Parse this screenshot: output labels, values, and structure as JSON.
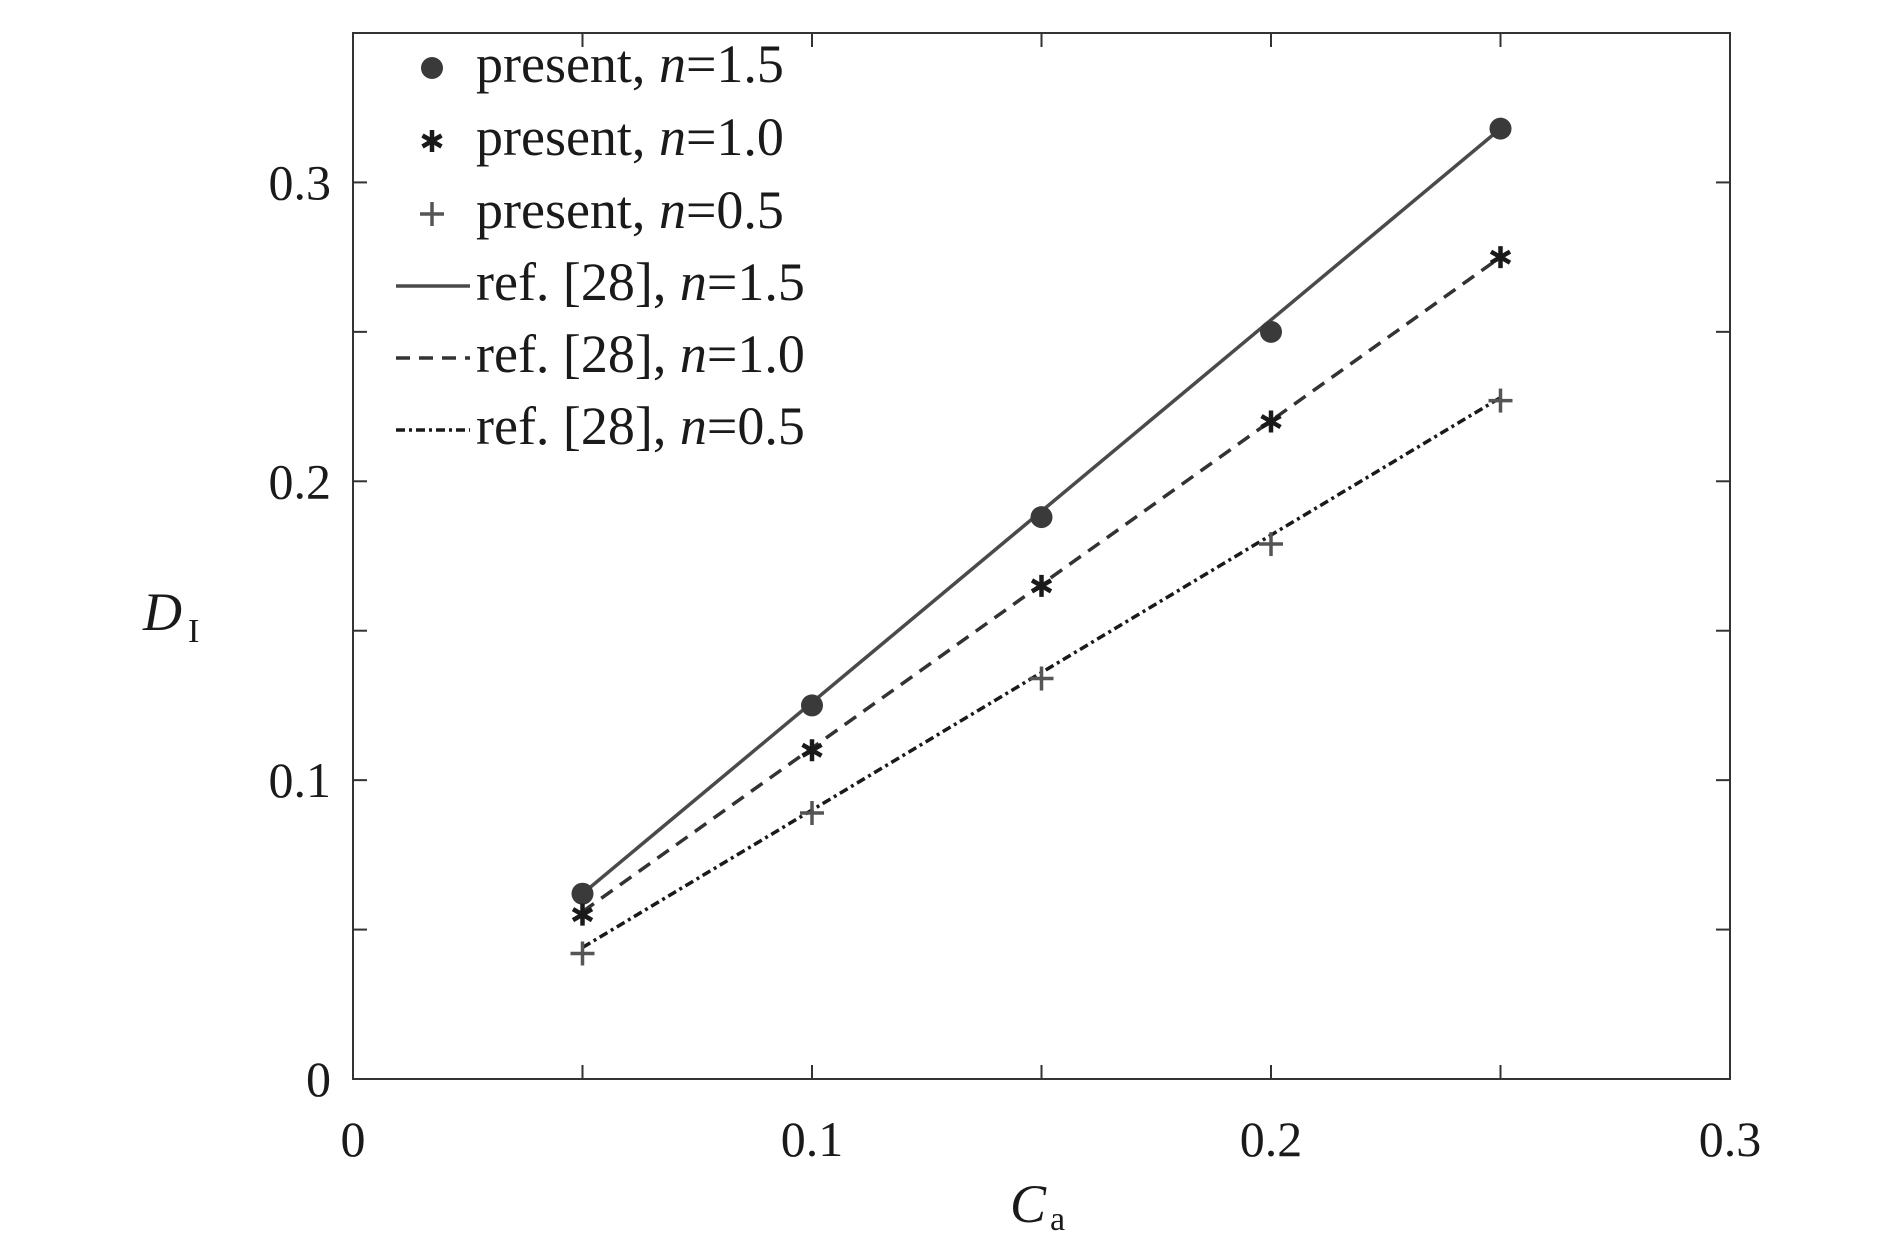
{
  "chart_data": {
    "type": "scatter",
    "xlabel": {
      "symbol": "C",
      "subscript": "a"
    },
    "ylabel": {
      "symbol": "D",
      "subscript": "I"
    },
    "xlim": [
      0,
      0.3
    ],
    "ylim": [
      0,
      0.35
    ],
    "xticks": [
      0,
      0.05,
      0.1,
      0.15,
      0.2,
      0.25,
      0.3
    ],
    "xtick_labels": [
      "0",
      "",
      "0.1",
      "",
      "0.2",
      "",
      "0.3"
    ],
    "yticks": [
      0,
      0.05,
      0.1,
      0.15,
      0.2,
      0.25,
      0.3
    ],
    "ytick_labels": [
      "0",
      "",
      "0.1",
      "",
      "0.2",
      "",
      "0.3"
    ],
    "grid": false,
    "legend_position": "top-left",
    "series": [
      {
        "name": "present, n=1.5",
        "label_text": "present, ",
        "label_var": "n",
        "label_eq": "=1.5",
        "kind": "marker",
        "marker": "circle",
        "color": "#3a3a3a",
        "x": [
          0.05,
          0.1,
          0.15,
          0.2,
          0.25
        ],
        "y": [
          0.062,
          0.125,
          0.188,
          0.25,
          0.318
        ]
      },
      {
        "name": "present, n=1.0",
        "label_text": "present, ",
        "label_var": "n",
        "label_eq": "=1.0",
        "kind": "marker",
        "marker": "asterisk",
        "color": "#1a1a1a",
        "x": [
          0.05,
          0.1,
          0.15,
          0.2,
          0.25
        ],
        "y": [
          0.055,
          0.11,
          0.165,
          0.22,
          0.275
        ]
      },
      {
        "name": "present, n=0.5",
        "label_text": "present, ",
        "label_var": "n",
        "label_eq": "=0.5",
        "kind": "marker",
        "marker": "plus",
        "color": "#555555",
        "x": [
          0.05,
          0.1,
          0.15,
          0.2,
          0.25
        ],
        "y": [
          0.042,
          0.089,
          0.134,
          0.179,
          0.227
        ]
      },
      {
        "name": "ref. [28], n=1.5",
        "label_text": "ref. [28], ",
        "label_var": "n",
        "label_eq": "=1.5",
        "kind": "line",
        "dash": "solid",
        "color": "#4a4a4a",
        "x": [
          0.05,
          0.25
        ],
        "y": [
          0.062,
          0.318
        ]
      },
      {
        "name": "ref. [28], n=1.0",
        "label_text": "ref. [28], ",
        "label_var": "n",
        "label_eq": "=1.0",
        "kind": "line",
        "dash": "dashed",
        "color": "#333333",
        "x": [
          0.05,
          0.25
        ],
        "y": [
          0.056,
          0.275
        ]
      },
      {
        "name": "ref. [28], n=0.5",
        "label_text": "ref. [28], ",
        "label_var": "n",
        "label_eq": "=0.5",
        "kind": "line",
        "dash": "dashdot",
        "color": "#1a1a1a",
        "x": [
          0.05,
          0.25
        ],
        "y": [
          0.044,
          0.228
        ]
      }
    ]
  }
}
